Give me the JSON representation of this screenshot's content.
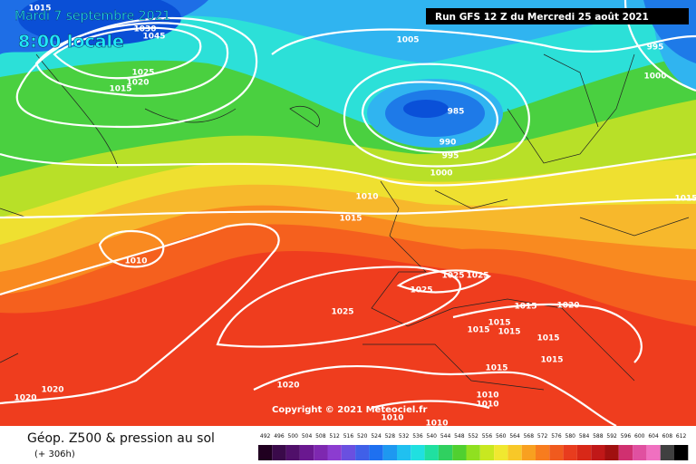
{
  "header": {
    "date": "Mardi 7 septembre 2021",
    "time": "8:00 locale",
    "run": "Run GFS 12 Z du Mercredi 25 août 2021"
  },
  "isobar_labels": [
    1015,
    1030,
    1045,
    1025,
    1020,
    1015,
    1005,
    995,
    1000,
    985,
    990,
    995,
    1000,
    1010,
    1015,
    1015,
    1010,
    1025,
    1025,
    1025,
    1025,
    1020,
    1015,
    1015,
    1015,
    1015,
    1015,
    1015,
    1015,
    1020,
    1020,
    1020,
    1010,
    1010,
    1010,
    1010
  ],
  "copyright": "Copyright © 2021 Meteociel.fr",
  "footer": {
    "title": "Géop. Z500 & pression au sol",
    "lead": "(+ 306h)"
  },
  "legend": [
    492,
    496,
    500,
    504,
    508,
    512,
    516,
    520,
    524,
    528,
    532,
    536,
    540,
    544,
    548,
    552,
    556,
    560,
    564,
    568,
    572,
    576,
    580,
    584,
    588,
    592,
    596,
    600,
    604,
    608,
    612
  ]
}
